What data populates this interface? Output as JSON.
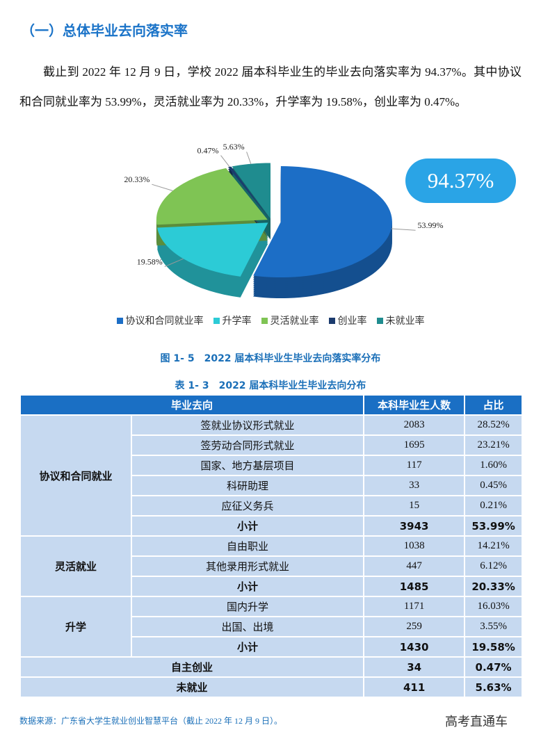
{
  "heading": "（一）总体毕业去向落实率",
  "paragraph": "截止到 2022 年 12 月 9 日，学校 2022 届本科毕业生的毕业去向落实率为 94.37%。其中协议和合同就业率为 53.99%，灵活就业率为 20.33%，升学率为 19.58%，创业率为 0.47%。",
  "chart_data": {
    "type": "pie",
    "categories": [
      "协议和合同就业率",
      "升学率",
      "灵活就业率",
      "创业率",
      "未就业率"
    ],
    "values": [
      53.99,
      19.58,
      20.33,
      0.47,
      5.63
    ],
    "value_labels": [
      "53.99%",
      "19.58%",
      "20.33%",
      "0.47%",
      "5.63%"
    ],
    "colors": [
      "#1c6ec6",
      "#2ccbd6",
      "#7fc454",
      "#1b3b6e",
      "#1f8c8f"
    ],
    "legend": "bottom"
  },
  "badge": "94.37%",
  "figure_caption": "图 1- 5　2022 届本科毕业生毕业去向落实率分布",
  "table_caption": "表 1- 3　2022 届本科毕业生毕业去向分布",
  "table": {
    "header": [
      "毕业去向",
      "本科毕业生人数",
      "占比"
    ],
    "groups": [
      {
        "name": "协议和合同就业",
        "rows": [
          [
            "签就业协议形式就业",
            2083,
            "28.52%"
          ],
          [
            "签劳动合同形式就业",
            1695,
            "23.21%"
          ],
          [
            "国家、地方基层项目",
            117,
            "1.60%"
          ],
          [
            "科研助理",
            33,
            "0.45%"
          ],
          [
            "应征义务兵",
            15,
            "0.21%"
          ],
          [
            "小计",
            3943,
            "53.99%"
          ]
        ]
      },
      {
        "name": "灵活就业",
        "rows": [
          [
            "自由职业",
            1038,
            "14.21%"
          ],
          [
            "其他录用形式就业",
            447,
            "6.12%"
          ],
          [
            "小计",
            1485,
            "20.33%"
          ]
        ]
      },
      {
        "name": "升学",
        "rows": [
          [
            "国内升学",
            1171,
            "16.03%"
          ],
          [
            "出国、出境",
            259,
            "3.55%"
          ],
          [
            "小计",
            1430,
            "19.58%"
          ]
        ]
      }
    ],
    "singles": [
      [
        "自主创业",
        34,
        "0.47%"
      ],
      [
        "未就业",
        411,
        "5.63%"
      ]
    ]
  },
  "source": "数据来源：广东省大学生就业创业智慧平台（截止 2022 年 12 月 9 日）。",
  "watermark": "高考直通车"
}
